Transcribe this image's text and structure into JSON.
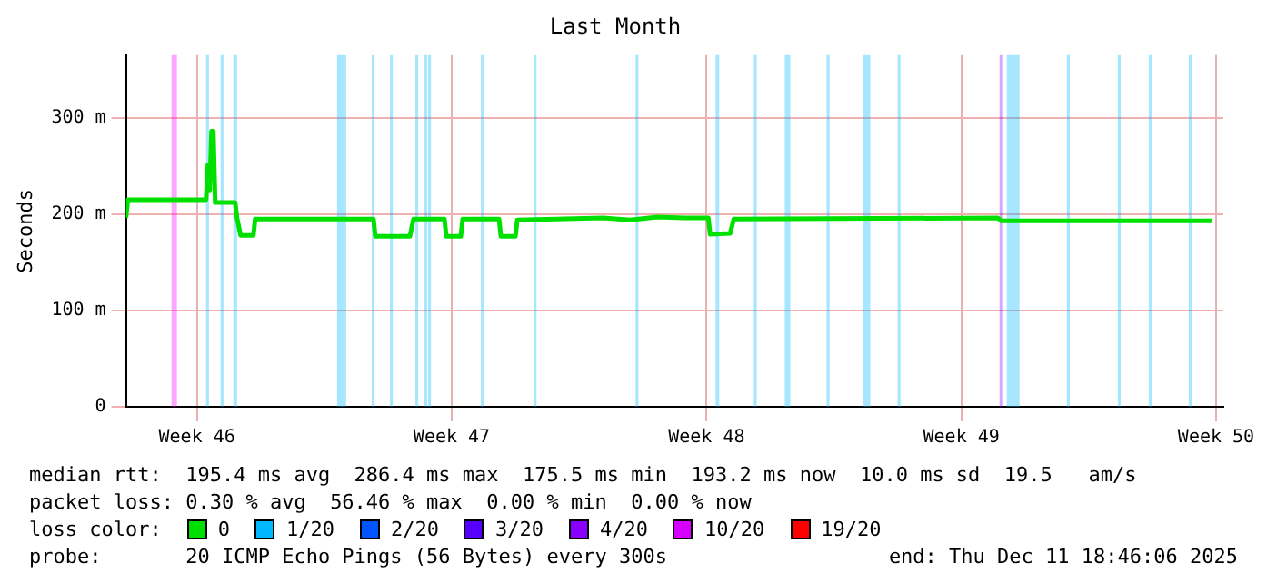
{
  "chart_data": {
    "type": "line",
    "title": "Last Month",
    "ylabel": "Seconds",
    "x": [
      "2025-11-11T13:12",
      "2025-11-11T14:24",
      "2025-11-13T18:00",
      "2025-11-13T19:12",
      "2025-11-13T20:24",
      "2025-11-13T21:36",
      "2025-11-13T22:48",
      "2025-11-14T00:00",
      "2025-11-14T13:12",
      "2025-11-14T14:24",
      "2025-11-14T16:48",
      "2025-11-15T01:12",
      "2025-11-15T02:24",
      "2025-11-18T08:24",
      "2025-11-18T09:36",
      "2025-11-19T08:24",
      "2025-11-19T10:48",
      "2025-11-20T07:12",
      "2025-11-20T08:24",
      "2025-11-20T18:00",
      "2025-11-20T19:12",
      "2025-11-21T19:12",
      "2025-11-21T20:24",
      "2025-11-22T06:00",
      "2025-11-22T07:12",
      "2025-11-24T15:36",
      "2025-11-25T09:36",
      "2025-11-26T03:36",
      "2025-11-26T21:36",
      "2025-11-27T13:12",
      "2025-11-27T14:24",
      "2025-11-28T03:36",
      "2025-11-28T06:00",
      "2025-12-05T12:00",
      "2025-12-05T14:24",
      "2025-12-11T09:36"
    ],
    "series": [
      {
        "name": "0",
        "color": "#00e000",
        "values": [
          196,
          215,
          215,
          251,
          225,
          286,
          286,
          212,
          212,
          196,
          178,
          178,
          195,
          195,
          177,
          177,
          195,
          195,
          177,
          177,
          195,
          195,
          177,
          177,
          194,
          196,
          194,
          197,
          196,
          196,
          179,
          180,
          195,
          196,
          193,
          193
        ]
      }
    ],
    "xlim": [
      "2025-11-11T13:12",
      "2025-12-11T16:48"
    ],
    "xticks": [
      {
        "value": "2025-11-13T12:00",
        "label": "Week 46"
      },
      {
        "value": "2025-11-20T12:00",
        "label": "Week 47"
      },
      {
        "value": "2025-11-27T12:00",
        "label": "Week 48"
      },
      {
        "value": "2025-12-04T12:00",
        "label": "Week 49"
      },
      {
        "value": "2025-12-11T12:00",
        "label": "Week 50"
      }
    ],
    "ylim": [
      0,
      365
    ],
    "yticks": [
      0,
      {
        "value": 100,
        "label": "100 m"
      },
      {
        "value": 200,
        "label": "200 m"
      },
      {
        "value": 300,
        "label": "300 m"
      }
    ],
    "grid": true,
    "legend": "bottom",
    "marker": "none",
    "line_style": "solid",
    "bands": [
      {
        "axis": "x",
        "from": "2025-11-12T19:12",
        "to": "2025-11-12T22:48",
        "color": "#ff00ff"
      },
      {
        "axis": "x",
        "from": "2025-11-13T18:00",
        "to": "2025-11-13T19:55",
        "color": "#00b8ff"
      },
      {
        "axis": "x",
        "from": "2025-11-14T03:36",
        "to": "2025-11-14T05:31",
        "color": "#00b8ff"
      },
      {
        "axis": "x",
        "from": "2025-11-14T12:00",
        "to": "2025-11-14T14:24",
        "color": "#00b8ff"
      },
      {
        "axis": "x",
        "from": "2025-11-17T08:24",
        "to": "2025-11-17T14:24",
        "color": "#00b8ff"
      },
      {
        "axis": "x",
        "from": "2025-11-18T07:12",
        "to": "2025-11-18T09:07",
        "color": "#00b8ff"
      },
      {
        "axis": "x",
        "from": "2025-11-18T19:12",
        "to": "2025-11-18T21:07",
        "color": "#00b8ff"
      },
      {
        "axis": "x",
        "from": "2025-11-19T12:00",
        "to": "2025-11-19T13:55",
        "color": "#00b8ff"
      },
      {
        "axis": "x",
        "from": "2025-11-19T18:00",
        "to": "2025-11-19T19:12",
        "color": "#00b8ff"
      },
      {
        "axis": "x",
        "from": "2025-11-19T20:24",
        "to": "2025-11-19T22:19",
        "color": "#00b8ff"
      },
      {
        "axis": "x",
        "from": "2025-11-21T07:12",
        "to": "2025-11-21T09:07",
        "color": "#00b8ff"
      },
      {
        "axis": "x",
        "from": "2025-11-22T18:00",
        "to": "2025-11-22T19:55",
        "color": "#00b8ff"
      },
      {
        "axis": "x",
        "from": "2025-11-25T13:12",
        "to": "2025-11-25T15:07",
        "color": "#00b8ff"
      },
      {
        "axis": "x",
        "from": "2025-11-27T18:00",
        "to": "2025-11-27T20:24",
        "color": "#00b8ff"
      },
      {
        "axis": "x",
        "from": "2025-11-28T19:12",
        "to": "2025-11-28T21:07",
        "color": "#00b8ff"
      },
      {
        "axis": "x",
        "from": "2025-11-29T15:36",
        "to": "2025-11-29T19:12",
        "color": "#00b8ff"
      },
      {
        "axis": "x",
        "from": "2025-11-30T19:12",
        "to": "2025-11-30T21:07",
        "color": "#00b8ff"
      },
      {
        "axis": "x",
        "from": "2025-12-01T19:12",
        "to": "2025-12-02T00:00",
        "color": "#00b8ff"
      },
      {
        "axis": "x",
        "from": "2025-12-02T18:00",
        "to": "2025-12-02T19:55",
        "color": "#00b8ff"
      },
      {
        "axis": "x",
        "from": "2025-12-05T13:12",
        "to": "2025-12-05T14:24",
        "color": "#8000ff"
      },
      {
        "axis": "x",
        "from": "2025-12-05T18:00",
        "to": "2025-12-06T02:24",
        "color": "#00b8ff"
      },
      {
        "axis": "x",
        "from": "2025-12-07T09:36",
        "to": "2025-12-07T11:31",
        "color": "#00b8ff"
      },
      {
        "axis": "x",
        "from": "2025-12-08T19:12",
        "to": "2025-12-08T21:07",
        "color": "#00b8ff"
      },
      {
        "axis": "x",
        "from": "2025-12-09T15:36",
        "to": "2025-12-09T17:31",
        "color": "#00b8ff"
      },
      {
        "axis": "x",
        "from": "2025-12-10T18:00",
        "to": "2025-12-10T19:55",
        "color": "#00b8ff"
      }
    ],
    "annotations": [
      "median rtt:  195.4 ms avg  286.4 ms max  175.5 ms min  193.2 ms now  10.0 ms sd  19.5   am/s",
      "packet loss: 0.30 % avg  56.46 % max  0.00 % min  0.00 % now",
      "loss color:",
      "1/20",
      "2/20",
      "3/20",
      "4/20",
      "10/20",
      "19/20",
      "probe:       20 ICMP Echo Pings (56 Bytes) every 300s",
      "end: Thu Dec 11 18:46:06 2025"
    ]
  }
}
